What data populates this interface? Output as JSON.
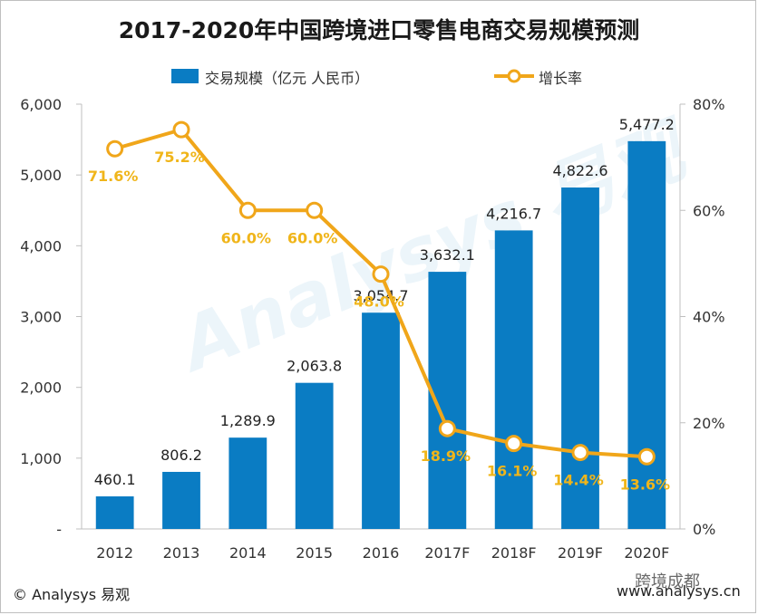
{
  "chart_data": {
    "type": "bar",
    "title": "2017-2020年中国跨境进口零售电商交易规模预测",
    "categories": [
      "2012",
      "2013",
      "2014",
      "2015",
      "2016",
      "2017F",
      "2018F",
      "2019F",
      "2020F"
    ],
    "series": [
      {
        "name": "交易规模（亿元 人民币）",
        "type": "bar",
        "axis": "left",
        "color": "#0a7cc3",
        "values": [
          460.1,
          806.2,
          1289.9,
          2063.8,
          3054.7,
          3632.1,
          4216.7,
          4822.6,
          5477.2
        ],
        "labels": [
          "460.1",
          "806.2",
          "1,289.9",
          "2,063.8",
          "3,054.7",
          "3,632.1",
          "4,216.7",
          "4,822.6",
          "5,477.2"
        ]
      },
      {
        "name": "增长率",
        "type": "line",
        "axis": "right",
        "color": "#f0a61a",
        "values": [
          71.6,
          75.2,
          60.0,
          60.0,
          48.0,
          18.9,
          16.1,
          14.4,
          13.6
        ],
        "labels": [
          "71.6%",
          "75.2%",
          "60.0%",
          "60.0%",
          "48.0%",
          "18.9%",
          "16.1%",
          "14.4%",
          "13.6%"
        ]
      }
    ],
    "left_axis": {
      "ylim": [
        0,
        6000
      ],
      "ticks": [
        0,
        1000,
        2000,
        3000,
        4000,
        5000,
        6000
      ],
      "tick_labels": [
        "-",
        "1,000",
        "2,000",
        "3,000",
        "4,000",
        "5,000",
        "6,000"
      ]
    },
    "right_axis": {
      "ylim": [
        0,
        80
      ],
      "ticks": [
        0,
        20,
        40,
        60,
        80
      ],
      "tick_labels": [
        "0%",
        "20%",
        "40%",
        "60%",
        "80%"
      ]
    },
    "legend_position": "top-center",
    "grid": false
  },
  "footer": {
    "copyright": "© Analysys 易观",
    "website": "www.analysys.cn",
    "wechat_tag": "跨境成都"
  },
  "watermark_text": "Analysys 易观"
}
